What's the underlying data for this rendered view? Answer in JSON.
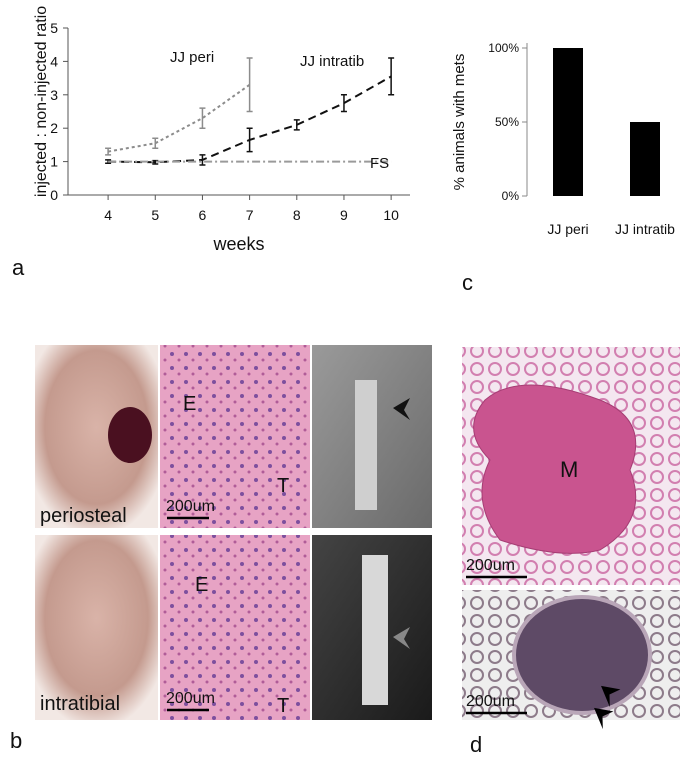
{
  "chart_data": [
    {
      "type": "line",
      "xlabel": "weeks",
      "ylabel": "injected : non-injected ratio",
      "xlim": [
        3.15,
        10.4
      ],
      "xticks": [
        4,
        5,
        6,
        7,
        8,
        9,
        10
      ],
      "ylim": [
        0,
        5
      ],
      "yticks": [
        0,
        1,
        2,
        3,
        4,
        5
      ],
      "series": [
        {
          "name": "JJ peri",
          "color": "#8c8c8c",
          "dash": "3,3",
          "x": [
            4,
            5,
            6,
            7
          ],
          "values": [
            1.3,
            1.55,
            2.3,
            3.3
          ],
          "errors": [
            0.1,
            0.15,
            0.3,
            0.8
          ]
        },
        {
          "name": "JJ intratib",
          "color": "#111111",
          "dash": "8,5",
          "x": [
            4,
            5,
            6,
            7,
            8,
            9,
            10
          ],
          "values": [
            1.0,
            0.98,
            1.05,
            1.65,
            2.1,
            2.75,
            3.55
          ],
          "errors": [
            0.05,
            0.05,
            0.15,
            0.35,
            0.15,
            0.25,
            0.55
          ]
        },
        {
          "name": "FS",
          "color": "#9a9a9a",
          "dash": "8,3,2,3",
          "x": [
            4,
            10
          ],
          "values": [
            1,
            1
          ]
        }
      ]
    },
    {
      "type": "bar",
      "ylabel": "% animals with mets",
      "color": "#000000",
      "categories": [
        "JJ peri",
        "JJ intratib"
      ],
      "values": [
        100,
        50
      ],
      "ylim": [
        0,
        100
      ],
      "yticks": [
        {
          "value": 0,
          "label": "0%"
        },
        {
          "value": 50,
          "label": "50%"
        },
        {
          "value": 100,
          "label": "100%"
        }
      ]
    }
  ],
  "panels": {
    "a": "a",
    "b": "b",
    "c": "c",
    "d": "d"
  },
  "panel_b": {
    "row1": {
      "photo": "periosteal",
      "histology": [
        "E",
        "T"
      ],
      "scale": "200um"
    },
    "row2": {
      "photo": "intratibial",
      "histology": [
        "E",
        "T"
      ],
      "scale": "200um"
    }
  },
  "panel_d": {
    "top": {
      "label": "M",
      "scale": "200um"
    },
    "bottom": {
      "scale": "200um"
    }
  }
}
